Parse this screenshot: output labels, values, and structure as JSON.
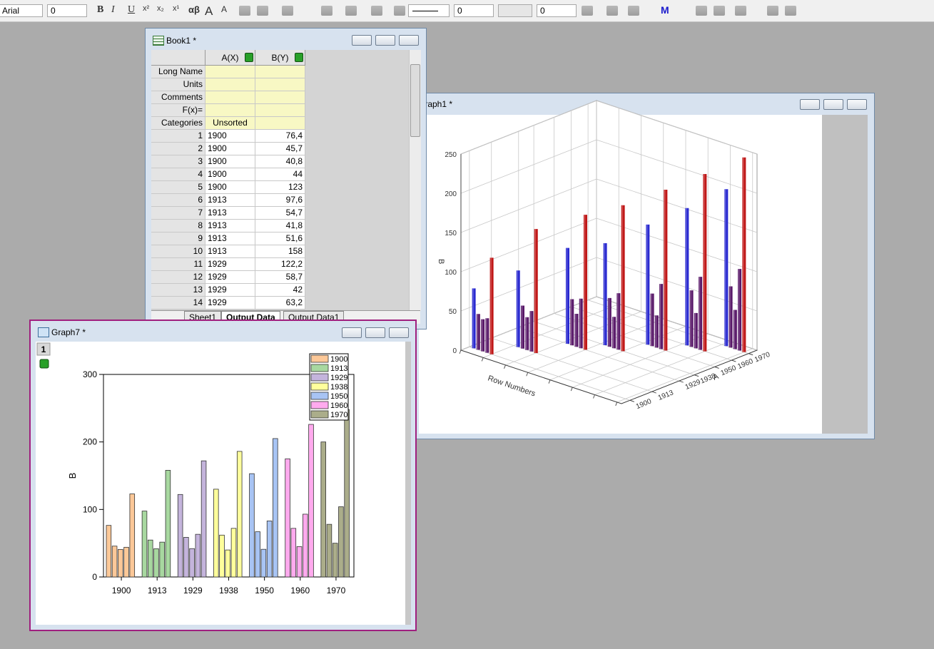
{
  "toolbar": {
    "font": "Arial",
    "font_size": "0",
    "buttons": [
      "B",
      "I",
      "U",
      "x²",
      "x₂",
      "x¹",
      "αβ",
      "A",
      "A"
    ],
    "box1": "0",
    "box2": "0",
    "m": "M"
  },
  "book": {
    "title": "Book1 *",
    "columns": [
      "A(X)",
      "B(Y)"
    ],
    "row_headers": [
      "Long Name",
      "Units",
      "Comments",
      "F(x)=",
      "Categories"
    ],
    "categories_value": "Unsorted",
    "rows": [
      [
        "1",
        "1900",
        "76,4"
      ],
      [
        "2",
        "1900",
        "45,7"
      ],
      [
        "3",
        "1900",
        "40,8"
      ],
      [
        "4",
        "1900",
        "44"
      ],
      [
        "5",
        "1900",
        "123"
      ],
      [
        "6",
        "1913",
        "97,6"
      ],
      [
        "7",
        "1913",
        "54,7"
      ],
      [
        "8",
        "1913",
        "41,8"
      ],
      [
        "9",
        "1913",
        "51,6"
      ],
      [
        "10",
        "1913",
        "158"
      ],
      [
        "11",
        "1929",
        "122,2"
      ],
      [
        "12",
        "1929",
        "58,7"
      ],
      [
        "13",
        "1929",
        "42"
      ],
      [
        "14",
        "1929",
        "63,2"
      ]
    ],
    "tabs": [
      "Sheet1",
      "Output Data",
      "Output Data1"
    ]
  },
  "graph1": {
    "title": "Graph1 *"
  },
  "graph7": {
    "title": "Graph7 *",
    "layer": "1"
  },
  "chart_data": [
    {
      "type": "bar",
      "ylabel": "B",
      "ylim": [
        0,
        300
      ],
      "yticks": [
        0,
        100,
        200,
        300
      ],
      "legend": "upper right",
      "series": [
        {
          "name": "1900",
          "color": "#fcc898",
          "values": [
            76.4,
            45.7,
            40.8,
            44,
            123
          ]
        },
        {
          "name": "1913",
          "color": "#a8d8a0",
          "values": [
            97.6,
            54.7,
            41.8,
            51.6,
            158
          ]
        },
        {
          "name": "1929",
          "color": "#c4b4dc",
          "values": [
            122.2,
            58.7,
            42,
            63.2,
            172
          ]
        },
        {
          "name": "1938",
          "color": "#ffff9c",
          "values": [
            130,
            62,
            40,
            72,
            186
          ]
        },
        {
          "name": "1950",
          "color": "#a8c4f4",
          "values": [
            153,
            67,
            41,
            83,
            205
          ]
        },
        {
          "name": "1960",
          "color": "#ffaaee",
          "values": [
            175,
            72,
            45,
            93,
            226
          ]
        },
        {
          "name": "1970",
          "color": "#abad8a",
          "values": [
            200,
            78,
            50,
            104,
            248
          ]
        }
      ]
    },
    {
      "type": "bar3d",
      "xlabel": "Row Numbers",
      "ylabel": "A",
      "zlabel": "B",
      "xlim": [
        0,
        36
      ],
      "xticks": [
        0,
        5,
        10,
        15,
        20,
        25,
        30,
        35
      ],
      "ylim": [
        1895,
        1975
      ],
      "yticks": [
        1900,
        1913,
        1929,
        1938,
        1950,
        1960,
        1970
      ],
      "zlim": [
        0,
        250
      ],
      "zticks": [
        0,
        50,
        100,
        150,
        200,
        250
      ],
      "colors": [
        "#2a2ad0",
        "#5a1a6a",
        "#5a1a6a",
        "#5a1a6a",
        "#c01818"
      ]
    }
  ]
}
